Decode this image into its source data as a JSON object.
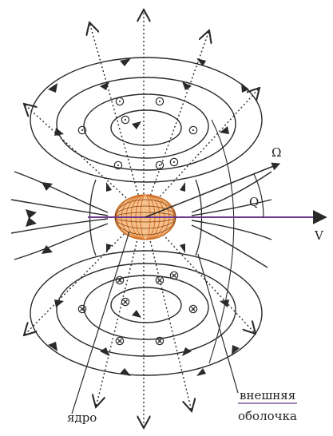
{
  "diagram": {
    "labels": {
      "omega": "Ω",
      "q": "Q",
      "v": "V",
      "core": "ядро",
      "shell_line1": "внешняя",
      "shell_line2": "оболочка"
    },
    "colors": {
      "line": "#2a2a2a",
      "core_orange": "#e28a3a",
      "core_dark": "#7a3a10",
      "axis_purple": "#6d3a8c",
      "background": "#ffffff"
    },
    "symbols": {
      "out_of_page": "⊙",
      "into_page": "⊗"
    }
  }
}
